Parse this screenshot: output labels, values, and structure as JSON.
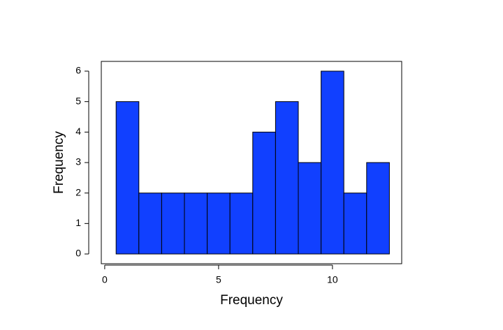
{
  "chart_data": {
    "type": "histogram",
    "xlabel": "Frequency",
    "ylabel": "Frequency",
    "bins": [
      0.5,
      1.5,
      2.5,
      3.5,
      4.5,
      5.5,
      6.5,
      7.5,
      8.5,
      9.5,
      10.5,
      11.5,
      12.5
    ],
    "values": [
      5,
      2,
      2,
      2,
      2,
      2,
      4,
      5,
      3,
      6,
      2,
      3
    ],
    "color": "#1140ff",
    "xlim": [
      -0.15,
      13.04
    ],
    "xticks": [
      0,
      5,
      10
    ],
    "ylim": [
      -0.32,
      6.32
    ],
    "yticks": [
      0,
      1,
      2,
      3,
      4,
      5,
      6
    ]
  }
}
